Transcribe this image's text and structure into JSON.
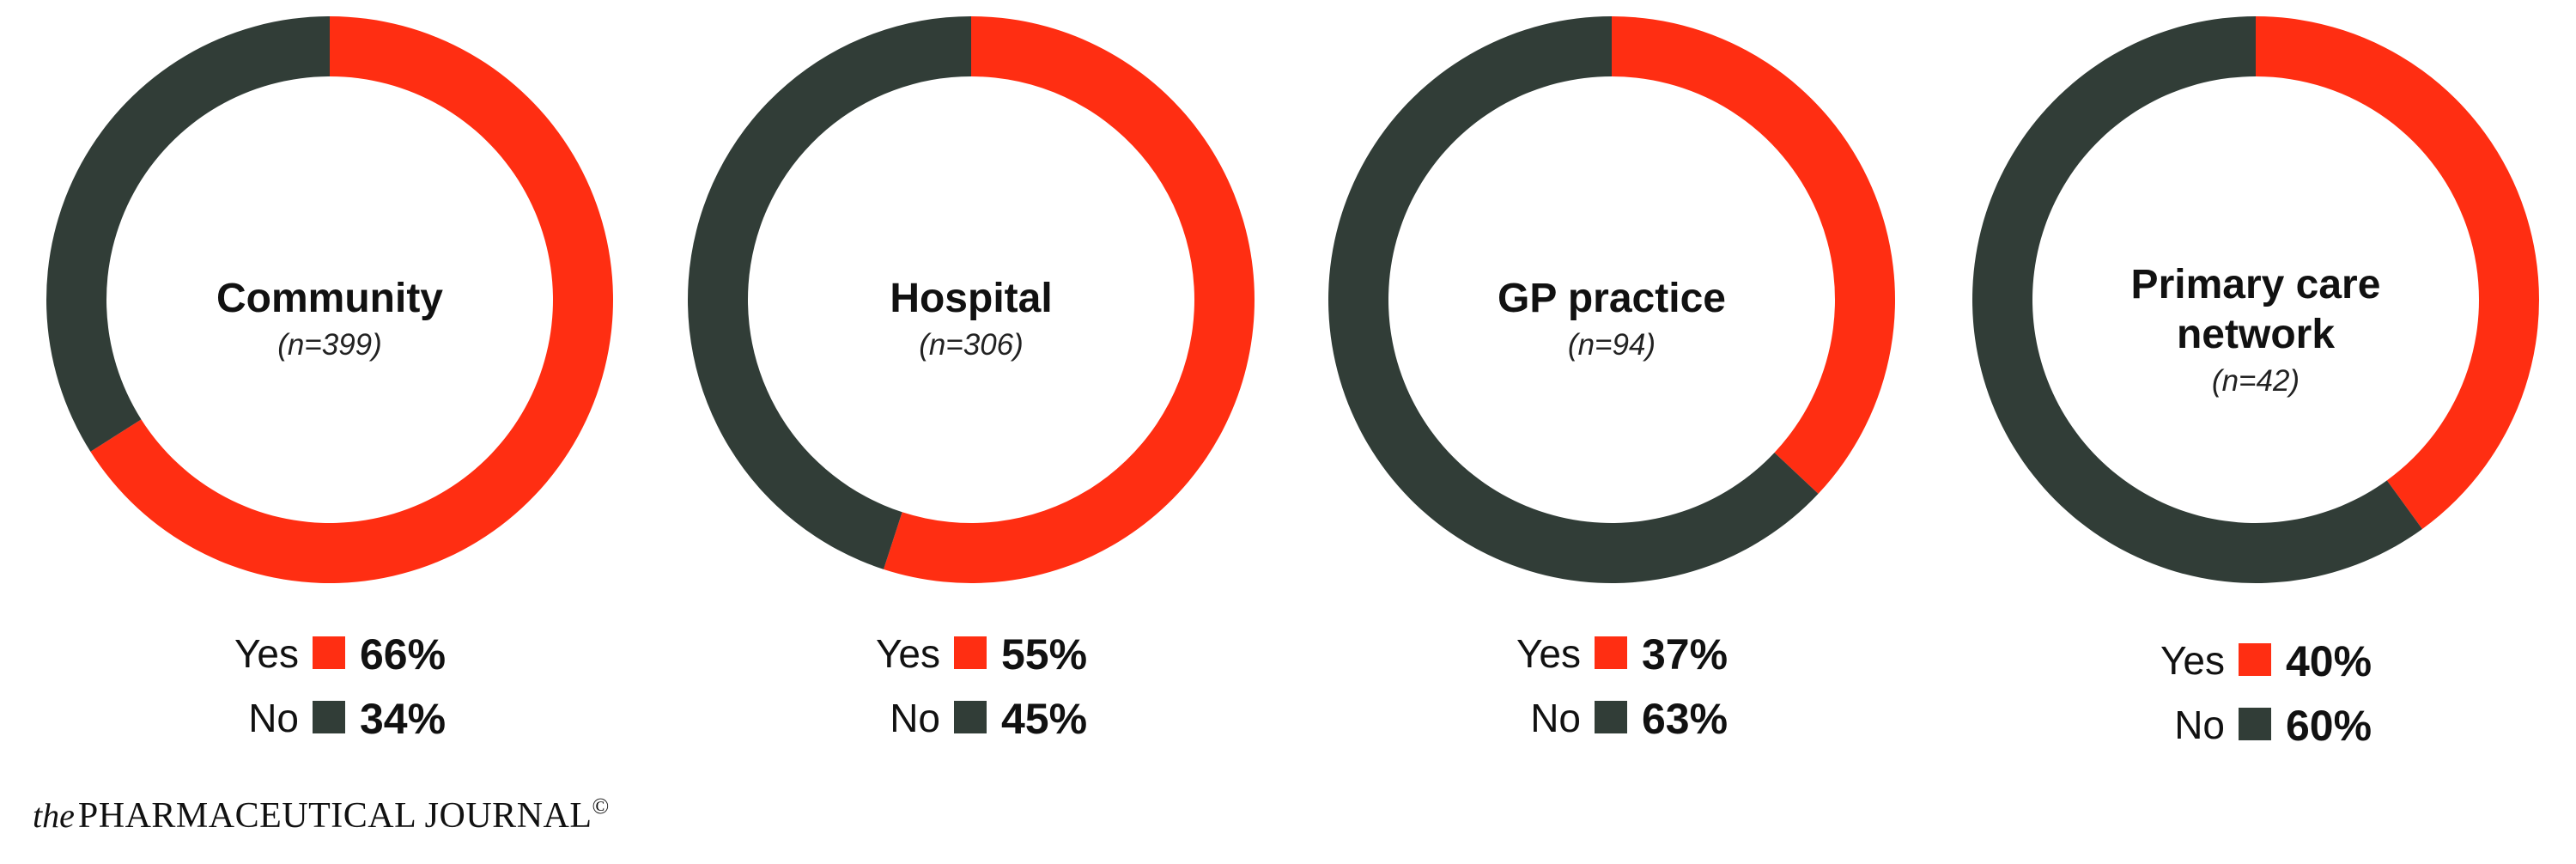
{
  "chart_data": [
    {
      "type": "pie",
      "title": "Community",
      "subtitle": "(n=399)",
      "categories": [
        "Yes",
        "No"
      ],
      "values": [
        66,
        34
      ],
      "value_labels": [
        "66%",
        "34%"
      ],
      "colors": [
        "#ff2e12",
        "#313d37"
      ]
    },
    {
      "type": "pie",
      "title": "Hospital",
      "subtitle": "(n=306)",
      "categories": [
        "Yes",
        "No"
      ],
      "values": [
        55,
        45
      ],
      "value_labels": [
        "55%",
        "45%"
      ],
      "colors": [
        "#ff2e12",
        "#313d37"
      ]
    },
    {
      "type": "pie",
      "title": "GP practice",
      "subtitle": "(n=94)",
      "categories": [
        "Yes",
        "No"
      ],
      "values": [
        37,
        63
      ],
      "value_labels": [
        "37%",
        "63%"
      ],
      "colors": [
        "#ff2e12",
        "#313d37"
      ]
    },
    {
      "type": "pie",
      "title_lines": [
        "Primary care",
        "network"
      ],
      "subtitle": "(n=42)",
      "categories": [
        "Yes",
        "No"
      ],
      "values": [
        40,
        60
      ],
      "value_labels": [
        "40%",
        "60%"
      ],
      "colors": [
        "#ff2e12",
        "#313d37"
      ]
    }
  ],
  "footer": {
    "prefix": "the",
    "name": "PHARMACEUTICAL JOURNAL",
    "symbol": "©"
  }
}
